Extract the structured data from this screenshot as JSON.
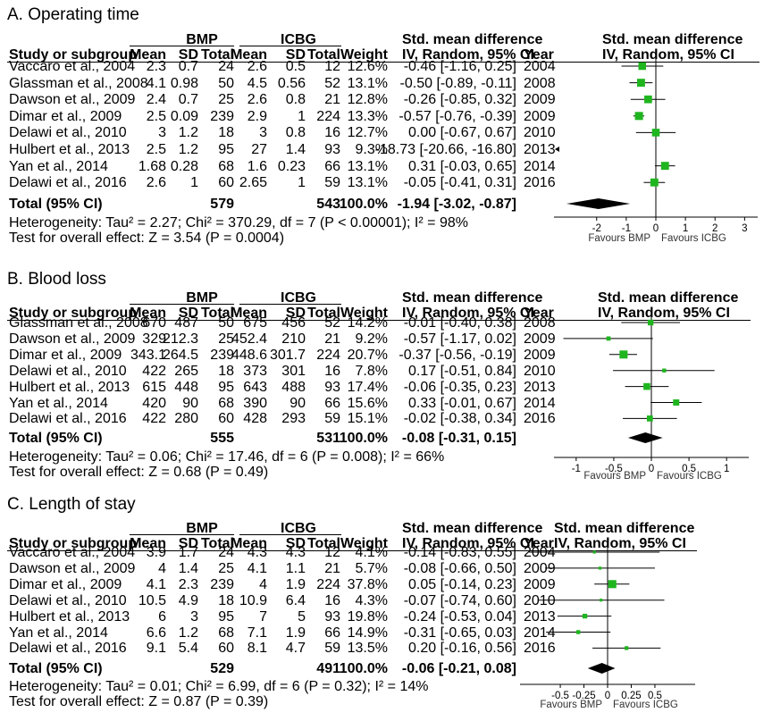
{
  "chart_data": [
    {
      "type": "forest",
      "title": "A.  Operating time",
      "group1": "BMP",
      "group2": "ICBG",
      "headers": {
        "study": "Study or subgroup",
        "mean": "Mean",
        "sd": "SD",
        "total": "Total",
        "weight": "Weight",
        "smd": "Std. mean difference",
        "smd_sub": "IV, Random, 95% CI",
        "year": "Year",
        "plot_title": "Std. mean difference",
        "plot_sub": "IV, Random, 95% CI"
      },
      "studies": [
        {
          "study": "Vaccaro et al., 2004",
          "m1": "2.3",
          "sd1": "0.7",
          "n1": "24",
          "m2": "2.6",
          "sd2": "0.5",
          "n2": "12",
          "weight": "12.6%",
          "ci": "-0.46 [-1.16, 0.25]",
          "year": "2004",
          "est": -0.46,
          "lo": -1.16,
          "hi": 0.25,
          "w": 12.6
        },
        {
          "study": "Glassman et al., 2008",
          "m1": "4.1",
          "sd1": "0.98",
          "n1": "50",
          "m2": "4.5",
          "sd2": "0.56",
          "n2": "52",
          "weight": "13.1%",
          "ci": "-0.50 [-0.89, -0.11]",
          "year": "2008",
          "est": -0.5,
          "lo": -0.89,
          "hi": -0.11,
          "w": 13.1
        },
        {
          "study": "Dawson et al., 2009",
          "m1": "2.4",
          "sd1": "0.7",
          "n1": "25",
          "m2": "2.6",
          "sd2": "0.8",
          "n2": "21",
          "weight": "12.8%",
          "ci": "-0.26 [-0.85, 0.32]",
          "year": "2009",
          "est": -0.26,
          "lo": -0.85,
          "hi": 0.32,
          "w": 12.8
        },
        {
          "study": "Dimar et al., 2009",
          "m1": "2.5",
          "sd1": "0.09",
          "n1": "239",
          "m2": "2.9",
          "sd2": "1",
          "n2": "224",
          "weight": "13.3%",
          "ci": "-0.57 [-0.76, -0.39]",
          "year": "2009",
          "est": -0.57,
          "lo": -0.76,
          "hi": -0.39,
          "w": 13.3
        },
        {
          "study": "Delawi et al., 2010",
          "m1": "3",
          "sd1": "1.2",
          "n1": "18",
          "m2": "3",
          "sd2": "0.8",
          "n2": "16",
          "weight": "12.7%",
          "ci": "0.00 [-0.67, 0.67]",
          "year": "2010",
          "est": 0.0,
          "lo": -0.67,
          "hi": 0.67,
          "w": 12.7
        },
        {
          "study": "Hulbert et al., 2013",
          "m1": "2.5",
          "sd1": "1.2",
          "n1": "95",
          "m2": "27",
          "sd2": "1.4",
          "n2": "93",
          "weight": "9.3%",
          "ci": "-18.73 [-20.66, -16.80]",
          "year": "2013",
          "est": -18.73,
          "lo": -20.66,
          "hi": -16.8,
          "w": 9.3,
          "offscale": true
        },
        {
          "study": "Yan et al., 2014",
          "m1": "1.68",
          "sd1": "0.28",
          "n1": "68",
          "m2": "1.6",
          "sd2": "0.23",
          "n2": "66",
          "weight": "13.1%",
          "ci": "0.31 [-0.03, 0.65]",
          "year": "2014",
          "est": 0.31,
          "lo": -0.03,
          "hi": 0.65,
          "w": 13.1
        },
        {
          "study": "Delawi et al., 2016",
          "m1": "2.6",
          "sd1": "1",
          "n1": "60",
          "m2": "2.65",
          "sd2": "1",
          "n2": "59",
          "weight": "13.1%",
          "ci": "-0.05 [-0.41, 0.31]",
          "year": "2016",
          "est": -0.05,
          "lo": -0.41,
          "hi": 0.31,
          "w": 13.1
        }
      ],
      "total": {
        "label": "Total (95% CI)",
        "n1": "579",
        "n2": "543",
        "weight": "100.0%",
        "ci": "-1.94 [-3.02, -0.87]",
        "est": -1.94,
        "lo": -3.02,
        "hi": -0.87
      },
      "heterogeneity": "Heterogeneity: Tau² = 2.27; Chi² = 370.29, df = 7 (P < 0.00001); I² = 98%",
      "overall": "Test for overall effect: Z = 3.54 (P = 0.0004)",
      "xlim": [
        -3.2,
        3.2
      ],
      "ticks": [
        -2,
        -1,
        0,
        1,
        2,
        3
      ],
      "tick_labels": [
        "-2",
        "-1",
        "0",
        "1",
        "2",
        "3"
      ],
      "favours_left": "Favours BMP",
      "favours_right": "Favours ICBG"
    },
    {
      "type": "forest",
      "title": "B.  Blood loss",
      "group1": "BMP",
      "group2": "ICBG",
      "headers": {
        "study": "Study or subgroup",
        "mean": "Mean",
        "sd": "SD",
        "total": "Total",
        "weight": "Weight",
        "smd": "Std. mean difference",
        "smd_sub": "IV, Random, 95% CI",
        "year": "Year",
        "plot_title": "Std. mean difference",
        "plot_sub": "IV, Random, 95% CI"
      },
      "studies": [
        {
          "study": "Glassman et al., 2008",
          "m1": "670",
          "sd1": "487",
          "n1": "50",
          "m2": "675",
          "sd2": "456",
          "n2": "52",
          "weight": "14.2%",
          "ci": "-0.01 [-0.40, 0.38]",
          "year": "2008",
          "est": -0.01,
          "lo": -0.4,
          "hi": 0.38,
          "w": 14.2
        },
        {
          "study": "Dawson et al., 2009",
          "m1": "329",
          "sd1": "212.3",
          "n1": "25",
          "m2": "452.4",
          "sd2": "210",
          "n2": "21",
          "weight": "9.2%",
          "ci": "-0.57 [-1.17, 0.02]",
          "year": "2009",
          "est": -0.57,
          "lo": -1.17,
          "hi": 0.02,
          "w": 9.2
        },
        {
          "study": "Dimar et al., 2009",
          "m1": "343.1",
          "sd1": "264.5",
          "n1": "239",
          "m2": "448.6",
          "sd2": "301.7",
          "n2": "224",
          "weight": "20.7%",
          "ci": "-0.37 [-0.56, -0.19]",
          "year": "2009",
          "est": -0.37,
          "lo": -0.56,
          "hi": -0.19,
          "w": 20.7
        },
        {
          "study": "Delawi et al., 2010",
          "m1": "422",
          "sd1": "265",
          "n1": "18",
          "m2": "373",
          "sd2": "301",
          "n2": "16",
          "weight": "7.8%",
          "ci": "0.17 [-0.51, 0.84]",
          "year": "2010",
          "est": 0.17,
          "lo": -0.51,
          "hi": 0.84,
          "w": 7.8
        },
        {
          "study": "Hulbert et al., 2013",
          "m1": "615",
          "sd1": "448",
          "n1": "95",
          "m2": "643",
          "sd2": "488",
          "n2": "93",
          "weight": "17.4%",
          "ci": "-0.06 [-0.35, 0.23]",
          "year": "2013",
          "est": -0.06,
          "lo": -0.35,
          "hi": 0.23,
          "w": 17.4
        },
        {
          "study": "Yan et al., 2014",
          "m1": "420",
          "sd1": "90",
          "n1": "68",
          "m2": "390",
          "sd2": "90",
          "n2": "66",
          "weight": "15.6%",
          "ci": "0.33 [-0.01, 0.67]",
          "year": "2014",
          "est": 0.33,
          "lo": -0.01,
          "hi": 0.67,
          "w": 15.6
        },
        {
          "study": "Delawi et al., 2016",
          "m1": "422",
          "sd1": "280",
          "n1": "60",
          "m2": "428",
          "sd2": "293",
          "n2": "59",
          "weight": "15.1%",
          "ci": "-0.02 [-0.38, 0.34]",
          "year": "2016",
          "est": -0.02,
          "lo": -0.38,
          "hi": 0.34,
          "w": 15.1
        }
      ],
      "total": {
        "label": "Total (95% CI)",
        "n1": "555",
        "n2": "531",
        "weight": "100.0%",
        "ci": "-0.08 [-0.31, 0.15]",
        "est": -0.08,
        "lo": -0.31,
        "hi": 0.15
      },
      "heterogeneity": "Heterogeneity: Tau² = 0.06; Chi² = 17.46, df = 6 (P = 0.008); I² = 66%",
      "overall": "Test for overall effect: Z = 0.68 (P = 0.49)",
      "xlim": [
        -1.2,
        1.2
      ],
      "ticks": [
        -1,
        -0.5,
        0,
        0.5,
        1
      ],
      "tick_labels": [
        "-1",
        "-0.5",
        "0",
        "0.5",
        "1"
      ],
      "favours_left": "Favours BMP",
      "favours_right": "Favours ICBG"
    },
    {
      "type": "forest",
      "title": "C.  Length of stay",
      "group1": "BMP",
      "group2": "ICBG",
      "headers": {
        "study": "Study or subgroup",
        "mean": "Mean",
        "sd": "SD",
        "total": "Total",
        "weight": "Weight",
        "smd": "Std. mean difference",
        "smd_sub": "IV, Random, 95% CI",
        "year": "Year",
        "plot_title": "Std. mean difference",
        "plot_sub": "IV, Random, 95% CI"
      },
      "studies": [
        {
          "study": "Vaccaro et al., 2004",
          "m1": "3.9",
          "sd1": "1.7",
          "n1": "24",
          "m2": "4.3",
          "sd2": "4.3",
          "n2": "12",
          "weight": "4.1%",
          "ci": "-0.14 [-0.83, 0.55]",
          "year": "2004",
          "est": -0.14,
          "lo": -0.83,
          "hi": 0.55,
          "w": 4.1
        },
        {
          "study": "Dawson et al., 2009",
          "m1": "4",
          "sd1": "1.4",
          "n1": "25",
          "m2": "4.1",
          "sd2": "1.1",
          "n2": "21",
          "weight": "5.7%",
          "ci": "-0.08 [-0.66, 0.50]",
          "year": "2009",
          "est": -0.08,
          "lo": -0.66,
          "hi": 0.5,
          "w": 5.7
        },
        {
          "study": "Dimar et al., 2009",
          "m1": "4.1",
          "sd1": "2.3",
          "n1": "239",
          "m2": "4",
          "sd2": "1.9",
          "n2": "224",
          "weight": "37.8%",
          "ci": "0.05 [-0.14, 0.23]",
          "year": "2009",
          "est": 0.05,
          "lo": -0.14,
          "hi": 0.23,
          "w": 37.8
        },
        {
          "study": "Delawi et al., 2010",
          "m1": "10.5",
          "sd1": "4.9",
          "n1": "18",
          "m2": "10.9",
          "sd2": "6.4",
          "n2": "16",
          "weight": "4.3%",
          "ci": "-0.07 [-0.74, 0.60]",
          "year": "2010",
          "est": -0.07,
          "lo": -0.74,
          "hi": 0.6,
          "w": 4.3
        },
        {
          "study": "Hulbert et al., 2013",
          "m1": "6",
          "sd1": "3",
          "n1": "95",
          "m2": "7",
          "sd2": "5",
          "n2": "93",
          "weight": "19.8%",
          "ci": "-0.24 [-0.53, 0.04]",
          "year": "2013",
          "est": -0.24,
          "lo": -0.53,
          "hi": 0.04,
          "w": 19.8
        },
        {
          "study": "Yan et al., 2014",
          "m1": "6.6",
          "sd1": "1.2",
          "n1": "68",
          "m2": "7.1",
          "sd2": "1.9",
          "n2": "66",
          "weight": "14.9%",
          "ci": "-0.31 [-0.65, 0.03]",
          "year": "2014",
          "est": -0.31,
          "lo": -0.65,
          "hi": 0.03,
          "w": 14.9
        },
        {
          "study": "Delawi et al., 2016",
          "m1": "9.1",
          "sd1": "5.4",
          "n1": "60",
          "m2": "8.1",
          "sd2": "4.7",
          "n2": "59",
          "weight": "13.5%",
          "ci": "0.20 [-0.16, 0.56]",
          "year": "2016",
          "est": 0.2,
          "lo": -0.16,
          "hi": 0.56,
          "w": 13.5
        }
      ],
      "total": {
        "label": "Total (95% CI)",
        "n1": "529",
        "n2": "491",
        "weight": "100.0%",
        "ci": "-0.06 [-0.21, 0.08]",
        "est": -0.06,
        "lo": -0.21,
        "hi": 0.08
      },
      "heterogeneity": "Heterogeneity: Tau² = 0.01; Chi² = 6.99, df = 6 (P = 0.32); I² = 14%",
      "overall": "Test for overall effect: Z = 0.87 (P = 0.39)",
      "xlim": [
        -0.85,
        0.85
      ],
      "ticks": [
        -0.5,
        -0.25,
        0,
        0.25,
        0.5
      ],
      "tick_labels": [
        "-0.5",
        "-0.25",
        "0",
        "0.25",
        "0.5"
      ],
      "favours_left": "Favours BMP",
      "favours_right": "Favours ICBG"
    }
  ],
  "colors": {
    "marker": "#1fb51f",
    "diamond": "#000000",
    "line": "#000000"
  }
}
